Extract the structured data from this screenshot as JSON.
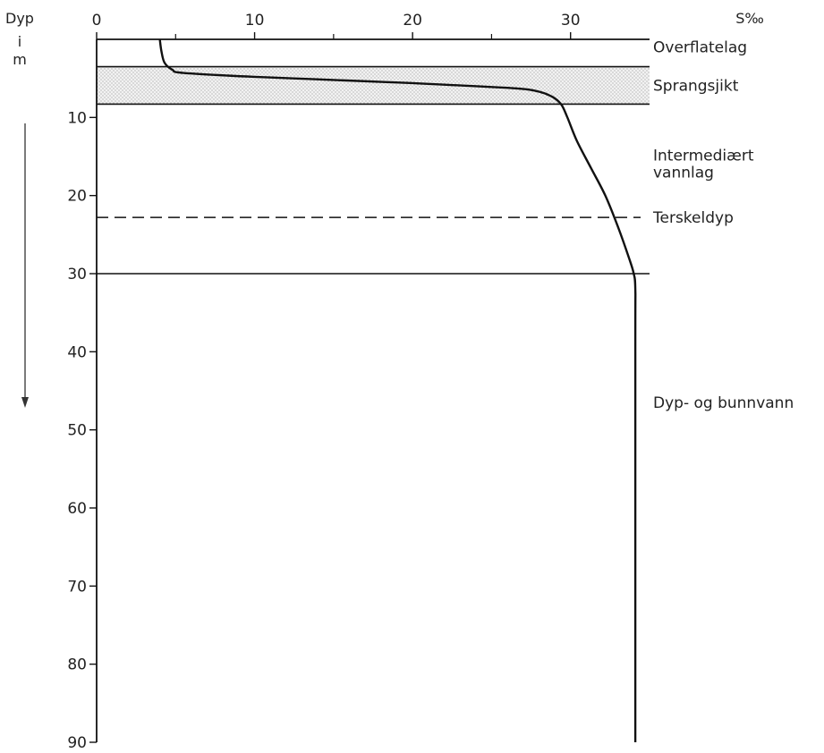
{
  "chart_data": {
    "type": "line",
    "ylabel_lines": [
      "Dyp",
      "i",
      "m"
    ],
    "xlabel": "S‰",
    "xlim": [
      0,
      35
    ],
    "ylim": [
      0,
      90
    ],
    "x_ticks": [
      0,
      10,
      20,
      30
    ],
    "x_minor_ticks": [
      5,
      15,
      25
    ],
    "y_ticks": [
      10,
      20,
      30,
      40,
      50,
      60,
      70,
      80,
      90
    ],
    "y_tick_labels": [
      "10",
      "20",
      "30",
      "40",
      "50",
      "60",
      "70",
      "80",
      "90"
    ],
    "x_tick_labels": [
      "0",
      "10",
      "20",
      "30"
    ],
    "series": [
      {
        "points": [
          [
            4.0,
            0
          ],
          [
            4.1,
            1.5
          ],
          [
            4.3,
            3.0
          ],
          [
            4.8,
            3.9
          ],
          [
            5.5,
            4.3
          ],
          [
            10.0,
            4.8
          ],
          [
            20.0,
            5.6
          ],
          [
            26.0,
            6.2
          ],
          [
            27.8,
            6.6
          ],
          [
            28.8,
            7.3
          ],
          [
            29.4,
            8.3
          ],
          [
            29.8,
            10.0
          ],
          [
            30.4,
            13.0
          ],
          [
            31.3,
            16.5
          ],
          [
            32.2,
            20.0
          ],
          [
            33.0,
            24.0
          ],
          [
            33.7,
            28.0
          ],
          [
            34.0,
            30.0
          ],
          [
            34.1,
            32.0
          ],
          [
            34.1,
            40.0
          ],
          [
            34.1,
            90.0
          ]
        ]
      }
    ],
    "layers": [
      {
        "label": "Overflatelag",
        "depth": 1.0
      },
      {
        "label": "Sprangsjikt",
        "top": 3.5,
        "bottom": 8.3,
        "shaded": true
      },
      {
        "label_lines": [
          "Intermediært",
          "vannlag"
        ],
        "depth": 15.5
      },
      {
        "label": "Terskeldyp",
        "depth": 22.8,
        "line": "dashed"
      },
      {
        "label": "Dyp- og bunnvann",
        "depth": 46.5
      }
    ],
    "horizontal_lines": [
      {
        "depth": 3.5,
        "style": "solid"
      },
      {
        "depth": 8.3,
        "style": "solid"
      },
      {
        "depth": 22.8,
        "style": "dashed"
      },
      {
        "depth": 30.0,
        "style": "solid"
      }
    ],
    "grid": false,
    "legend": "none"
  }
}
